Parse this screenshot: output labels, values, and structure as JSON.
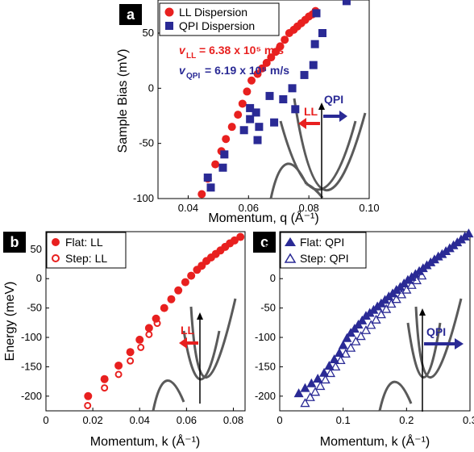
{
  "panels": [
    {
      "label": "a",
      "legend": [
        "LL Dispersion",
        "QPI Dispersion"
      ]
    },
    {
      "label": "b",
      "legend": [
        "Flat: LL",
        "Step: LL"
      ]
    },
    {
      "label": "c",
      "legend": [
        "Flat: QPI",
        "Step: QPI"
      ]
    }
  ],
  "annotations": {
    "v_ll_symbol": "v",
    "v_ll_sub": "LL",
    "v_ll_value": "= 6.38 x 10⁵ m/s",
    "v_qpi_symbol": "v",
    "v_qpi_sub": "QPI",
    "v_qpi_value": "= 6.19 x 10⁵ m/s",
    "arrow_ll": "LL",
    "arrow_qpi": "QPI"
  },
  "colors": {
    "red": "#e8201f",
    "blue": "#2a2a95",
    "gray": "#5a5a5a",
    "axis": "#000000"
  },
  "chart_data": [
    {
      "panel": "a",
      "type": "scatter",
      "xlabel": "Momentum, q (Å⁻¹)",
      "ylabel": "Sample Bias (mV)",
      "xlim": [
        0.03,
        0.1
      ],
      "ylim": [
        -100,
        80
      ],
      "xticks": [
        "0.04",
        "0.06",
        "0.08",
        "0.10"
      ],
      "xtickvals": [
        0.04,
        0.06,
        0.08,
        0.1
      ],
      "yticks": [
        "-100",
        "-50",
        "0",
        "50"
      ],
      "ytickvals": [
        -100,
        -50,
        0,
        50
      ],
      "series": [
        {
          "name": "LL Dispersion",
          "marker": "circle",
          "color": "#e8201f",
          "x": [
            0.0445,
            0.0465,
            0.049,
            0.051,
            0.0525,
            0.0545,
            0.0565,
            0.058,
            0.0595,
            0.061,
            0.063,
            0.0645,
            0.066,
            0.0675,
            0.069,
            0.0705,
            0.072,
            0.0735,
            0.075,
            0.0762,
            0.0775,
            0.0788,
            0.08,
            0.0812,
            0.0822
          ],
          "y": [
            -96,
            -82,
            -69,
            -57,
            -46,
            -35,
            -24,
            -14,
            -3,
            7,
            13,
            18,
            23,
            28,
            33,
            38,
            44,
            50,
            53,
            56,
            59,
            62,
            65,
            67,
            70
          ]
        },
        {
          "name": "QPI Dispersion",
          "marker": "square",
          "color": "#2a2a95",
          "x": [
            0.0465,
            0.0475,
            0.0515,
            0.052,
            0.0585,
            0.0605,
            0.0605,
            0.0625,
            0.063,
            0.0635,
            0.067,
            0.0685,
            0.0715,
            0.0745,
            0.0755,
            0.0785,
            0.0815,
            0.082,
            0.0825,
            0.0845,
            0.0925
          ],
          "y": [
            -81,
            -90,
            -72,
            -60,
            -38,
            -18,
            -28,
            -22,
            -47,
            -35,
            -7,
            -31,
            -10,
            0,
            -19,
            12,
            21,
            40,
            68,
            50,
            79
          ]
        }
      ]
    },
    {
      "panel": "b",
      "type": "scatter",
      "xlabel": "Momentum, k (Å⁻¹)",
      "ylabel": "Energy (meV)",
      "xlim": [
        0,
        0.085
      ],
      "ylim": [
        -225,
        80
      ],
      "xticks": [
        "0",
        "0.02",
        "0.04",
        "0.06",
        "0.08"
      ],
      "xtickvals": [
        0,
        0.02,
        0.04,
        0.06,
        0.08
      ],
      "yticks": [
        "-200",
        "-150",
        "-100",
        "-50",
        "0",
        "50"
      ],
      "ytickvals": [
        -200,
        -150,
        -100,
        -50,
        0,
        50
      ],
      "series": [
        {
          "name": "Flat: LL",
          "marker": "circle",
          "color": "#e8201f",
          "x": [
            0.018,
            0.025,
            0.031,
            0.036,
            0.04,
            0.044,
            0.047,
            0.0505,
            0.0535,
            0.0565,
            0.0595,
            0.062,
            0.0645,
            0.0665,
            0.0685,
            0.0705,
            0.0725,
            0.0745,
            0.0765,
            0.0785,
            0.0805,
            0.083
          ],
          "y": [
            -200,
            -171,
            -148,
            -125,
            -104,
            -84,
            -68,
            -50,
            -35,
            -20,
            -6,
            5,
            15,
            22,
            30,
            36,
            42,
            48,
            54,
            60,
            65,
            71
          ]
        },
        {
          "name": "Step: LL",
          "marker": "open-circle",
          "color": "#e8201f",
          "x": [
            0.0178,
            0.025,
            0.031,
            0.036,
            0.0405,
            0.044,
            0.0475
          ],
          "y": [
            -216,
            -186,
            -163,
            -140,
            -117,
            -95,
            -76
          ]
        }
      ]
    },
    {
      "panel": "c",
      "type": "scatter",
      "xlabel": "Momentum, k (Å⁻¹)",
      "ylabel": "",
      "xlim": [
        0,
        0.3
      ],
      "ylim": [
        -225,
        80
      ],
      "xticks": [
        "0",
        "0.1",
        "0.2",
        "0.3"
      ],
      "xtickvals": [
        0,
        0.1,
        0.2,
        0.3
      ],
      "yticks": [
        "-200",
        "-150",
        "-100",
        "-50",
        "0",
        "50"
      ],
      "ytickvals": [
        -200,
        -150,
        -100,
        -50,
        0,
        50
      ],
      "series": [
        {
          "name": "Flat: QPI",
          "marker": "triangle",
          "color": "#2a2a95",
          "x": [
            0.03,
            0.04,
            0.05,
            0.06,
            0.07,
            0.078,
            0.086,
            0.094,
            0.1,
            0.106,
            0.112,
            0.118,
            0.124,
            0.13,
            0.136,
            0.142,
            0.148,
            0.154,
            0.16,
            0.166,
            0.172,
            0.178,
            0.184,
            0.19,
            0.196,
            0.202,
            0.208,
            0.214,
            0.22,
            0.226,
            0.232,
            0.238,
            0.244,
            0.25,
            0.256,
            0.262,
            0.268,
            0.274,
            0.28,
            0.286,
            0.292,
            0.298
          ],
          "y": [
            -195,
            -186,
            -178,
            -170,
            -160,
            -148,
            -137,
            -126,
            -113,
            -101,
            -92,
            -85,
            -78,
            -71,
            -63,
            -58,
            -53,
            -47,
            -42,
            -36,
            -30,
            -25,
            -19,
            -14,
            -8,
            -2,
            3,
            8,
            13,
            18,
            23,
            28,
            33,
            38,
            42,
            47,
            52,
            57,
            62,
            67,
            72,
            77
          ]
        },
        {
          "name": "Step: QPI",
          "marker": "open-triangle",
          "color": "#2a2a95",
          "x": [
            0.04,
            0.048,
            0.056,
            0.064,
            0.072,
            0.08,
            0.088,
            0.096,
            0.104,
            0.112,
            0.12,
            0.128,
            0.136,
            0.144,
            0.152,
            0.16,
            0.168,
            0.176,
            0.184,
            0.192,
            0.2,
            0.208,
            0.216,
            0.224
          ],
          "y": [
            -212,
            -202,
            -193,
            -183,
            -172,
            -161,
            -150,
            -139,
            -128,
            -118,
            -107,
            -98,
            -88,
            -79,
            -70,
            -61,
            -52,
            -43,
            -35,
            -27,
            -19,
            -11,
            -3,
            5
          ]
        }
      ]
    }
  ]
}
